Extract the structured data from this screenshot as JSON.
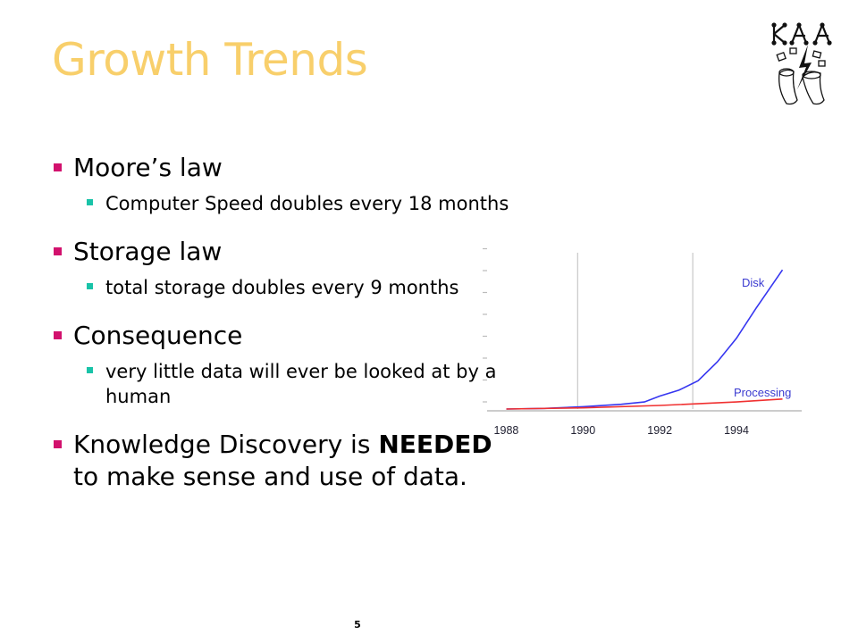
{
  "slide": {
    "title": "Growth Trends",
    "page_number": "5"
  },
  "bullets": [
    {
      "text": "Moore’s law",
      "sub": [
        "Computer Speed doubles every 18 months"
      ]
    },
    {
      "text": "Storage law",
      "sub": [
        "total storage doubles every 9 months"
      ]
    },
    {
      "text": "Consequence",
      "sub": [
        "very little data will ever be looked at by a human"
      ]
    },
    {
      "text_before": "Knowledge Discovery is ",
      "text_bold": "NEEDED",
      "text_after": " to make sense and use of data."
    }
  ],
  "chart_data": {
    "type": "line",
    "title": "",
    "xlabel": "",
    "ylabel": "",
    "x_ticks": [
      "1988",
      "1990",
      "1992",
      "1994"
    ],
    "x_range": [
      1987.5,
      1995.7
    ],
    "y_range": [
      0,
      100
    ],
    "grid": "vertical lines at 1990 and 1993",
    "series": [
      {
        "name": "Disk",
        "color": "#3636f0",
        "x": [
          1988,
          1989,
          1990,
          1991,
          1991.6,
          1992,
          1992.5,
          1993,
          1993.5,
          1994,
          1994.5,
          1995.2
        ],
        "y": [
          0,
          0.5,
          2,
          4,
          6,
          11,
          16,
          24,
          40,
          60,
          85,
          118
        ]
      },
      {
        "name": "Processing",
        "color": "#f03030",
        "x": [
          1988,
          1990,
          1992,
          1994,
          1995.2
        ],
        "y": [
          0,
          1,
          3,
          6,
          8.5
        ]
      }
    ]
  }
}
